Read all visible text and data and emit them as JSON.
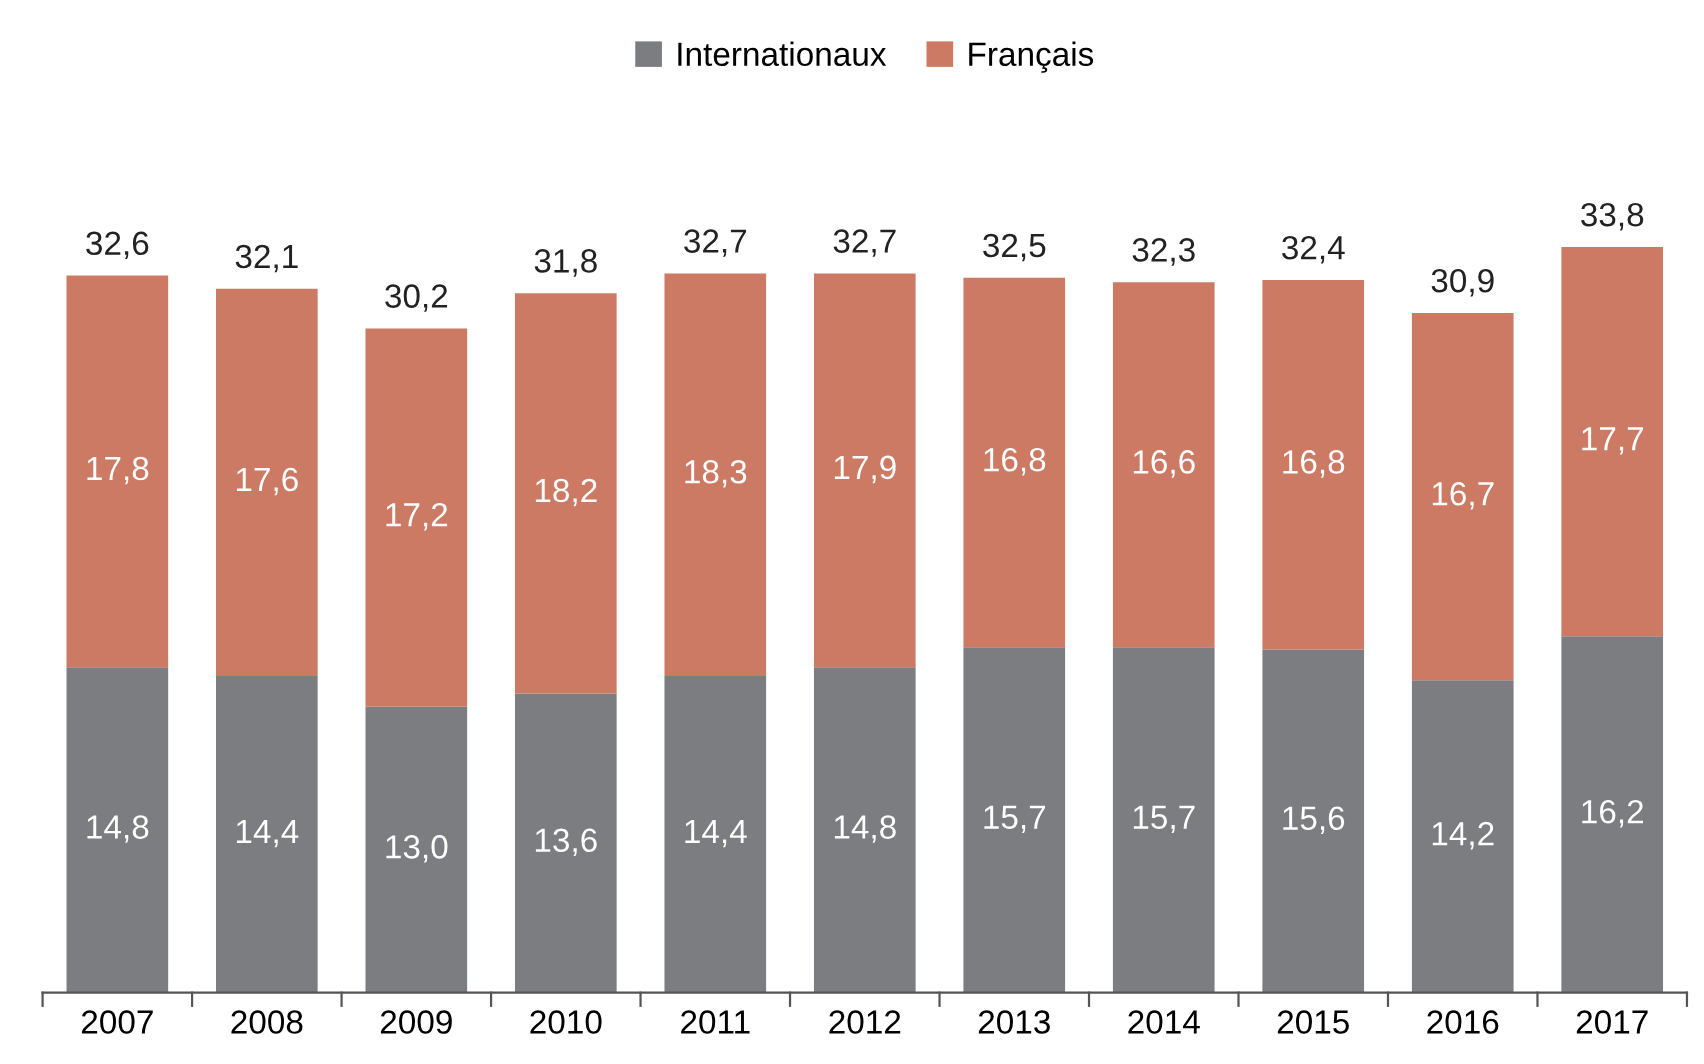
{
  "chart_data": {
    "type": "bar",
    "stacked": true,
    "legend": "top",
    "categories": [
      "2007",
      "2008",
      "2009",
      "2010",
      "2011",
      "2012",
      "2013",
      "2014",
      "2015",
      "2016",
      "2017"
    ],
    "series": [
      {
        "name": "Internationaux",
        "color": "#7b7d80",
        "values": [
          14.8,
          14.4,
          13.0,
          13.6,
          14.4,
          14.8,
          15.7,
          15.7,
          15.6,
          14.2,
          16.2
        ],
        "value_labels": [
          "14,8",
          "14,4",
          "13,0",
          "13,6",
          "14,4",
          "14,8",
          "15,7",
          "15,7",
          "15,6",
          "14,2",
          "16,2"
        ]
      },
      {
        "name": "Français",
        "color": "#cc7a63",
        "values": [
          17.8,
          17.6,
          17.2,
          18.2,
          18.3,
          17.9,
          16.8,
          16.6,
          16.8,
          16.7,
          17.7
        ],
        "value_labels": [
          "17,8",
          "17,6",
          "17,2",
          "18,2",
          "18,3",
          "17,9",
          "16,8",
          "16,6",
          "16,8",
          "16,7",
          "17,7"
        ]
      }
    ],
    "totals": [
      "32,6",
      "32,1",
      "30,2",
      "31,8",
      "32,7",
      "32,7",
      "32,5",
      "32,3",
      "32,4",
      "30,9",
      "33,8"
    ]
  }
}
